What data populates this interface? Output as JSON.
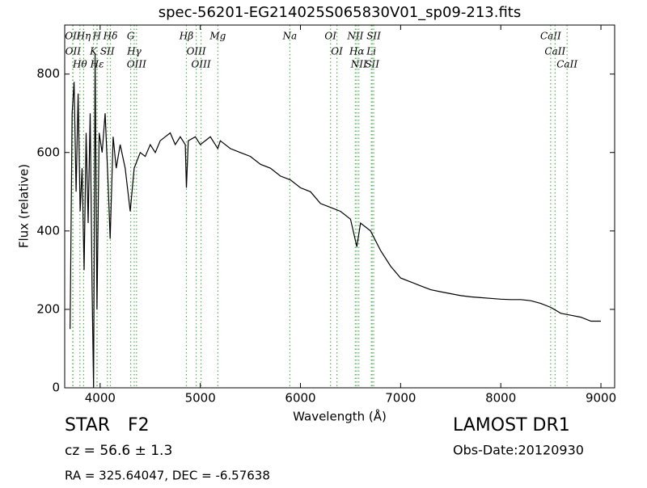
{
  "chart_data": {
    "type": "line",
    "title": "spec-56201-EG214025S065830V01_sp09-213.fits",
    "x_label": "Wavelength (Å)",
    "y_label": "Flux (relative)",
    "color": "#000000",
    "x": [
      3700,
      3720,
      3740,
      3760,
      3780,
      3800,
      3820,
      3840,
      3860,
      3880,
      3900,
      3920,
      3934,
      3950,
      3968,
      3990,
      4020,
      4050,
      4080,
      4100,
      4130,
      4160,
      4200,
      4250,
      4300,
      4340,
      4400,
      4450,
      4500,
      4550,
      4600,
      4650,
      4700,
      4750,
      4800,
      4850,
      4861,
      4880,
      4950,
      5000,
      5100,
      5175,
      5200,
      5300,
      5400,
      5500,
      5600,
      5700,
      5800,
      5900,
      6000,
      6100,
      6200,
      6300,
      6400,
      6500,
      6563,
      6600,
      6700,
      6800,
      6900,
      7000,
      7100,
      7200,
      7300,
      7400,
      7500,
      7600,
      7700,
      7800,
      7900,
      8000,
      8100,
      8200,
      8300,
      8400,
      8500,
      8600,
      8700,
      8800,
      8900,
      9000
    ],
    "values": [
      150,
      700,
      780,
      500,
      750,
      450,
      560,
      300,
      650,
      420,
      700,
      250,
      0,
      850,
      200,
      650,
      600,
      700,
      520,
      380,
      640,
      560,
      620,
      560,
      450,
      560,
      600,
      590,
      620,
      600,
      630,
      640,
      650,
      620,
      640,
      620,
      510,
      630,
      640,
      620,
      640,
      610,
      630,
      610,
      600,
      590,
      570,
      560,
      540,
      530,
      510,
      500,
      470,
      460,
      450,
      430,
      360,
      420,
      400,
      350,
      310,
      280,
      270,
      260,
      250,
      245,
      240,
      235,
      232,
      230,
      228,
      226,
      225,
      225,
      222,
      215,
      205,
      190,
      185,
      180,
      170,
      170
    ],
    "xlim": [
      3646,
      9137
    ],
    "ylim": [
      0,
      925
    ],
    "xticks": [
      4000,
      5000,
      6000,
      7000,
      8000,
      9000
    ],
    "yticks": [
      0,
      200,
      400,
      600,
      800
    ],
    "line_marker_color": "#55b055",
    "spectral_lines": [
      {
        "label": "OII",
        "wavelength": 3726
      },
      {
        "label": "OII",
        "wavelength": 3729
      },
      {
        "label": "Hθ",
        "wavelength": 3798
      },
      {
        "label": "Hη",
        "wavelength": 3835
      },
      {
        "label": "K",
        "wavelength": 3934
      },
      {
        "label": "H",
        "wavelength": 3968
      },
      {
        "label": "Hε",
        "wavelength": 3970
      },
      {
        "label": "SII",
        "wavelength": 4072
      },
      {
        "label": "Hδ",
        "wavelength": 4102
      },
      {
        "label": "G",
        "wavelength": 4305
      },
      {
        "label": "Hγ",
        "wavelength": 4340
      },
      {
        "label": "OIII",
        "wavelength": 4363
      },
      {
        "label": "Hβ",
        "wavelength": 4861
      },
      {
        "label": "OIII",
        "wavelength": 4959
      },
      {
        "label": "OIII",
        "wavelength": 5007
      },
      {
        "label": "Mg",
        "wavelength": 5175
      },
      {
        "label": "Na",
        "wavelength": 5894
      },
      {
        "label": "OI",
        "wavelength": 6300
      },
      {
        "label": "OI",
        "wavelength": 6364
      },
      {
        "label": "NII",
        "wavelength": 6548
      },
      {
        "label": "Hα",
        "wavelength": 6563
      },
      {
        "label": "NII",
        "wavelength": 6583
      },
      {
        "label": "Li",
        "wavelength": 6708
      },
      {
        "label": "SII",
        "wavelength": 6716
      },
      {
        "label": "SII",
        "wavelength": 6731
      },
      {
        "label": "CaII",
        "wavelength": 8498
      },
      {
        "label": "CaII",
        "wavelength": 8542
      },
      {
        "label": "CaII",
        "wavelength": 8662
      }
    ],
    "info": {
      "class": "STAR",
      "subclass": "F2",
      "survey": "LAMOST DR1",
      "cz": "cz = 56.6 ± 1.3",
      "obs_date": "Obs-Date:20120930",
      "ra_dec": "RA = 325.64047, DEC = -6.57638"
    }
  }
}
